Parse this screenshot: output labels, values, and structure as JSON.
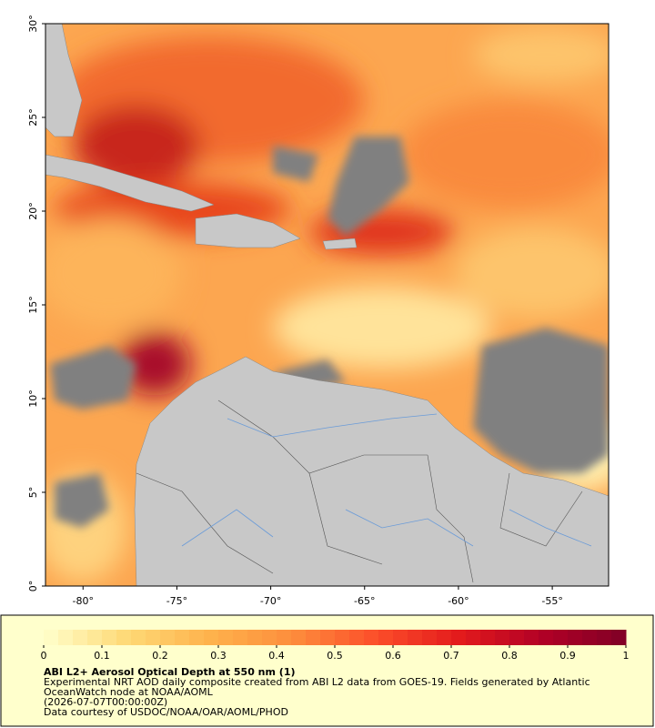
{
  "chart_data": {
    "type": "map",
    "xlim": [
      -82,
      -52
    ],
    "ylim": [
      0,
      30
    ],
    "xticks": [
      {
        "value": -80,
        "label": "-80°"
      },
      {
        "value": -75,
        "label": "-75°"
      },
      {
        "value": -70,
        "label": "-70°"
      },
      {
        "value": -65,
        "label": "-65°"
      },
      {
        "value": -60,
        "label": "-60°"
      },
      {
        "value": -55,
        "label": "-55°"
      }
    ],
    "yticks": [
      {
        "value": 0,
        "label": "0°"
      },
      {
        "value": 5,
        "label": "5°"
      },
      {
        "value": 10,
        "label": "10°"
      },
      {
        "value": 15,
        "label": "15°"
      },
      {
        "value": 20,
        "label": "20°"
      },
      {
        "value": 25,
        "label": "25°"
      },
      {
        "value": 30,
        "label": "30°"
      }
    ],
    "colorbar": {
      "range": [
        0,
        1
      ],
      "ticks": [
        0,
        0.1,
        0.2,
        0.3,
        0.4,
        0.5,
        0.6,
        0.7,
        0.8,
        0.9,
        1
      ],
      "colors": [
        "#ffffcc",
        "#fed976",
        "#feb24c",
        "#fd8d3c",
        "#fc4e2a",
        "#e31a1c",
        "#b10026",
        "#800026"
      ]
    },
    "title": "ABI L2+ Aerosol Optical Depth at 550 nm (1)",
    "description": [
      "Experimental NRT AOD daily composite created from ABI L2 data from GOES-19. Fields generated by Atlantic",
      "OceanWatch node at NOAA/AOML",
      "(2026-07-07T00:00:00Z)",
      "Data courtesy of USDOC/NOAA/OAR/AOML/PHOD"
    ]
  }
}
